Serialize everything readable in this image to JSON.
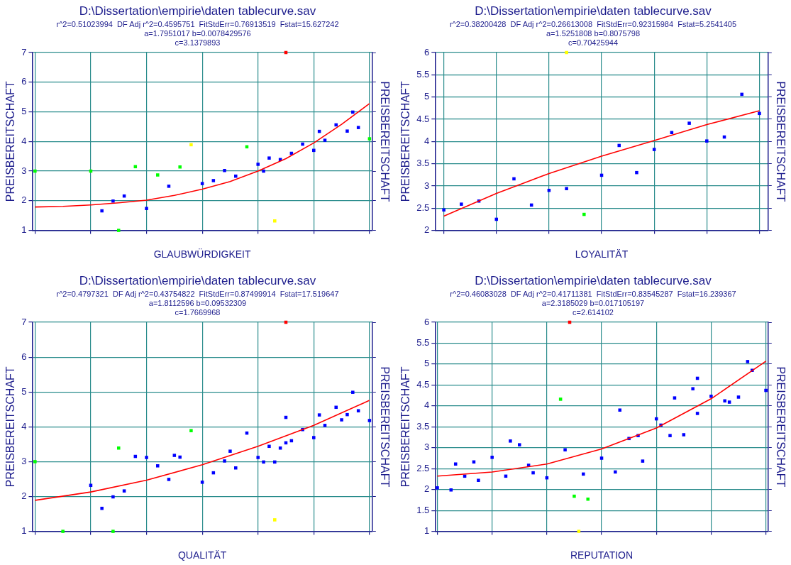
{
  "chart_data": [
    {
      "type": "scatter",
      "title": "D:\\Dissertation\\empirie\\daten tablecurve.sav",
      "subtitle": "r^2=0.51023994  DF Adj r^2=0.4595751  FitStdErr=0.76913519  Fstat=15.627242\na=1.7951017 b=0.0078429576\nc=3.1379893",
      "xlabel": "GLAUBWÜRDIGKEIT",
      "ylabel": "PREISBEREITSCHAFT",
      "y2label": "PREISBEREITSCHAFT",
      "ylim": [
        1,
        7
      ],
      "yticks": [
        1,
        2,
        3,
        4,
        5,
        6,
        7
      ],
      "grid": true,
      "marker": "square",
      "categories": [
        null,
        null,
        null,
        null,
        null,
        null,
        null,
        null,
        null,
        null,
        null,
        null,
        null,
        null,
        null,
        null,
        null,
        null,
        null,
        null,
        null,
        null,
        null,
        null,
        null,
        null,
        null,
        null,
        null,
        null,
        null,
        null,
        null,
        null,
        null,
        null,
        null,
        null,
        null,
        null,
        null,
        null,
        null,
        null,
        null,
        null,
        null,
        null,
        null,
        null,
        null,
        null,
        null,
        null,
        null,
        null,
        null,
        null,
        null,
        null,
        null
      ],
      "series": [
        {
          "color": "#0000ff",
          "values": [
            null,
            null,
            null,
            null,
            null,
            null,
            null,
            null,
            null,
            null,
            null,
            null,
            1.66,
            null,
            1.99,
            null,
            2.16,
            null,
            null,
            null,
            1.74,
            null,
            null,
            null,
            2.49,
            null,
            null,
            null,
            null,
            null,
            2.58,
            null,
            2.68,
            null,
            3.02,
            null,
            2.83,
            null,
            null,
            null,
            3.23,
            3.0,
            3.44,
            null,
            3.39,
            null,
            3.6,
            null,
            3.91,
            null,
            3.7,
            4.34,
            4.04,
            null,
            4.56,
            null,
            4.35,
            4.99,
            4.47,
            null,
            null
          ]
        },
        {
          "color": "#00ff00",
          "values": [
            3.0,
            null,
            null,
            null,
            null,
            null,
            null,
            null,
            null,
            null,
            3.0,
            null,
            null,
            null,
            null,
            1.0,
            null,
            null,
            3.15,
            null,
            null,
            null,
            2.87,
            null,
            null,
            null,
            3.14,
            null,
            null,
            null,
            null,
            null,
            null,
            null,
            null,
            null,
            null,
            null,
            3.82,
            null,
            null,
            null,
            null,
            null,
            null,
            null,
            null,
            null,
            null,
            null,
            null,
            null,
            null,
            null,
            null,
            null,
            null,
            null,
            null,
            null,
            4.09
          ]
        },
        {
          "color": "#ffff00",
          "values": [
            null,
            null,
            null,
            null,
            null,
            null,
            null,
            null,
            null,
            null,
            null,
            null,
            null,
            null,
            null,
            null,
            null,
            null,
            null,
            null,
            null,
            null,
            null,
            null,
            null,
            null,
            null,
            null,
            3.89,
            null,
            null,
            null,
            null,
            null,
            null,
            null,
            null,
            null,
            null,
            null,
            null,
            null,
            null,
            1.32,
            null,
            null,
            null,
            null,
            null,
            null,
            null,
            null,
            null,
            null,
            null,
            null,
            null,
            null,
            null,
            null,
            null
          ]
        },
        {
          "color": "#ff0000",
          "values": [
            null,
            null,
            null,
            null,
            null,
            null,
            null,
            null,
            null,
            null,
            null,
            null,
            null,
            null,
            null,
            null,
            null,
            null,
            null,
            null,
            null,
            null,
            null,
            null,
            null,
            null,
            null,
            null,
            null,
            null,
            null,
            null,
            null,
            null,
            null,
            null,
            null,
            null,
            null,
            null,
            null,
            null,
            null,
            null,
            null,
            7.0,
            null,
            null,
            null,
            null,
            null,
            null,
            null,
            null,
            null,
            null,
            null,
            null,
            null,
            null,
            null
          ]
        },
        {
          "type": "line",
          "color": "#ff0000",
          "marker": "none",
          "values": [
            1.79,
            null,
            null,
            null,
            null,
            1.81,
            null,
            null,
            null,
            null,
            1.86,
            null,
            null,
            null,
            null,
            1.93,
            null,
            null,
            null,
            null,
            2.02,
            null,
            null,
            null,
            null,
            2.18,
            null,
            null,
            null,
            null,
            2.39,
            null,
            null,
            null,
            null,
            2.65,
            null,
            null,
            null,
            null,
            3.0,
            null,
            null,
            null,
            null,
            3.42,
            null,
            null,
            null,
            null,
            3.95,
            null,
            null,
            null,
            null,
            4.58,
            null,
            null,
            null,
            null,
            5.28
          ]
        }
      ]
    },
    {
      "type": "scatter",
      "title": "D:\\Dissertation\\empirie\\daten tablecurve.sav",
      "subtitle": "r^2=0.38200428  DF Adj r^2=0.26613008  FitStdErr=0.92315984  Fstat=5.2541405\na=1.5251808 b=0.8075798\nc=0.70425944",
      "xlabel": "LOYALITÄT",
      "ylabel": "PREISBEREITSCHAFT",
      "y2label": "PREISBEREITSCHAFT",
      "ylim": [
        2,
        6
      ],
      "yticks": [
        2,
        2.5,
        3,
        3.5,
        4,
        4.5,
        5,
        5.5,
        6
      ],
      "grid": true,
      "marker": "square",
      "categories": [
        null,
        null,
        null,
        null,
        null,
        null,
        null,
        null,
        null,
        null,
        null,
        null,
        null,
        null,
        null,
        null,
        null,
        null,
        null
      ],
      "series": [
        {
          "color": "#0000ff",
          "values": [
            2.46,
            2.59,
            2.66,
            2.25,
            3.16,
            2.57,
            2.9,
            2.94,
            null,
            3.24,
            3.91,
            3.3,
            3.82,
            4.2,
            4.41,
            4.01,
            4.1,
            5.06,
            4.63
          ]
        },
        {
          "color": "#00ff00",
          "values": [
            null,
            null,
            null,
            null,
            null,
            null,
            null,
            null,
            2.36,
            null,
            null,
            null,
            null,
            null,
            null,
            null,
            null,
            null,
            null
          ]
        },
        {
          "color": "#ffff00",
          "values": [
            null,
            null,
            null,
            null,
            null,
            null,
            null,
            6.0,
            null,
            null,
            null,
            null,
            null,
            null,
            null,
            null,
            null,
            null,
            null
          ]
        },
        {
          "type": "line",
          "color": "#ff0000",
          "marker": "none",
          "values": [
            2.32,
            null,
            null,
            2.83,
            null,
            null,
            3.28,
            null,
            null,
            3.67,
            null,
            null,
            4.02,
            null,
            null,
            4.38,
            null,
            null,
            4.69
          ]
        }
      ]
    },
    {
      "type": "scatter",
      "title": "D:\\Dissertation\\empirie\\daten tablecurve.sav",
      "subtitle": "r^2=0.4797321  DF Adj r^2=0.43754822  FitStdErr=0.87499914  Fstat=17.519647\na=1.8112596 b=0.09532309\nc=1.7669968",
      "xlabel": "QUALITÄT",
      "ylabel": "PREISBEREITSCHAFT",
      "y2label": "PREISBEREITSCHAFT",
      "ylim": [
        1,
        7
      ],
      "yticks": [
        1,
        2,
        3,
        4,
        5,
        6,
        7
      ],
      "grid": true,
      "marker": "square",
      "categories": [
        null,
        null,
        null,
        null,
        null,
        null,
        null,
        null,
        null,
        null,
        null,
        null,
        null,
        null,
        null,
        null,
        null,
        null,
        null,
        null,
        null,
        null,
        null,
        null,
        null,
        null,
        null,
        null,
        null,
        null,
        null,
        null,
        null,
        null,
        null,
        null,
        null,
        null,
        null,
        null,
        null,
        null,
        null,
        null,
        null,
        null,
        null,
        null,
        null,
        null,
        null,
        null,
        null,
        null,
        null,
        null,
        null,
        null,
        null,
        null,
        null
      ],
      "series": [
        {
          "color": "#0000ff",
          "values": [
            null,
            null,
            null,
            null,
            null,
            null,
            null,
            null,
            null,
            null,
            2.32,
            null,
            1.66,
            null,
            1.99,
            null,
            2.16,
            null,
            3.15,
            null,
            3.12,
            null,
            2.88,
            null,
            2.49,
            3.18,
            3.13,
            null,
            null,
            null,
            2.41,
            null,
            2.68,
            null,
            3.02,
            3.3,
            2.82,
            null,
            3.82,
            null,
            3.12,
            2.99,
            3.44,
            2.99,
            3.39,
            3.54,
            3.6,
            null,
            3.92,
            null,
            3.69,
            4.34,
            4.04,
            null,
            4.56,
            4.2,
            4.35,
            4.99,
            4.46,
            null,
            4.18
          ]
        },
        {
          "color": "#0000ff",
          "values": [
            null,
            null,
            null,
            null,
            null,
            null,
            null,
            null,
            null,
            null,
            null,
            null,
            null,
            null,
            null,
            null,
            null,
            null,
            null,
            null,
            null,
            null,
            null,
            null,
            null,
            null,
            null,
            null,
            null,
            null,
            null,
            null,
            null,
            null,
            null,
            null,
            null,
            null,
            null,
            null,
            null,
            null,
            null,
            null,
            null,
            4.27,
            null,
            null,
            null,
            null,
            null,
            null,
            null,
            null,
            null,
            null,
            null,
            null,
            null,
            null,
            null
          ]
        },
        {
          "color": "#00ff00",
          "values": [
            3.0,
            null,
            null,
            null,
            null,
            1.0,
            null,
            null,
            null,
            null,
            null,
            null,
            null,
            null,
            1.0,
            3.39,
            null,
            null,
            null,
            null,
            null,
            null,
            null,
            null,
            null,
            null,
            null,
            null,
            3.89,
            null,
            null,
            null,
            null,
            null,
            null,
            null,
            null,
            null,
            null,
            null,
            null,
            null,
            null,
            null,
            null,
            null,
            null,
            null,
            null,
            null,
            null,
            null,
            null,
            null,
            null,
            null,
            null,
            null,
            null,
            null,
            null
          ]
        },
        {
          "color": "#ffff00",
          "values": [
            null,
            null,
            null,
            null,
            null,
            null,
            null,
            null,
            null,
            null,
            null,
            null,
            null,
            null,
            null,
            null,
            null,
            null,
            null,
            null,
            null,
            null,
            null,
            null,
            null,
            null,
            null,
            null,
            null,
            null,
            null,
            null,
            null,
            null,
            null,
            null,
            null,
            null,
            null,
            null,
            null,
            null,
            null,
            1.33,
            null,
            null,
            null,
            null,
            null,
            null,
            null,
            null,
            null,
            null,
            null,
            null,
            null,
            null,
            null,
            null,
            null
          ]
        },
        {
          "color": "#ff0000",
          "values": [
            null,
            null,
            null,
            null,
            null,
            null,
            null,
            null,
            null,
            null,
            null,
            null,
            null,
            null,
            null,
            null,
            null,
            null,
            null,
            null,
            null,
            null,
            null,
            null,
            null,
            null,
            null,
            null,
            null,
            null,
            null,
            null,
            null,
            null,
            null,
            null,
            null,
            null,
            null,
            null,
            null,
            null,
            null,
            null,
            null,
            7.0,
            null,
            null,
            null,
            null,
            null,
            null,
            null,
            null,
            null,
            null,
            null,
            null,
            null,
            null,
            null
          ]
        },
        {
          "type": "line",
          "color": "#ff0000",
          "marker": "none",
          "values": [
            1.89,
            null,
            null,
            null,
            null,
            null,
            null,
            null,
            null,
            null,
            2.13,
            null,
            null,
            null,
            null,
            null,
            null,
            null,
            null,
            null,
            2.47,
            null,
            null,
            null,
            null,
            null,
            null,
            null,
            null,
            null,
            2.91,
            null,
            null,
            null,
            null,
            null,
            null,
            null,
            null,
            null,
            3.44,
            null,
            null,
            null,
            null,
            null,
            null,
            null,
            null,
            null,
            4.04,
            null,
            null,
            null,
            null,
            null,
            null,
            null,
            null,
            null,
            4.76
          ]
        }
      ]
    },
    {
      "type": "scatter",
      "title": "D:\\Dissertation\\empirie\\daten tablecurve.sav",
      "subtitle": "r^2=0.46083028  DF Adj r^2=0.41711381  FitStdErr=0.83545287  Fstat=16.239367\na=2.3185029 b=0.017105197\nc=2.614102",
      "xlabel": "REPUTATION",
      "ylabel": "PREISBEREITSCHAFT",
      "y2label": "PREISBEREITSCHAFT",
      "ylim": [
        1,
        6
      ],
      "yticks": [
        1,
        1.5,
        2,
        2.5,
        3,
        3.5,
        4,
        4.5,
        5,
        5.5,
        6
      ],
      "grid": true,
      "marker": "square",
      "categories": [
        null,
        null,
        null,
        null,
        null,
        null,
        null,
        null,
        null,
        null,
        null,
        null,
        null,
        null,
        null,
        null,
        null,
        null,
        null,
        null,
        null,
        null,
        null,
        null,
        null,
        null,
        null,
        null,
        null,
        null,
        null,
        null,
        null,
        null,
        null,
        null,
        null,
        null,
        null,
        null,
        null,
        null,
        null,
        null,
        null,
        null,
        null,
        null,
        null,
        null,
        null,
        null,
        null,
        null,
        null,
        null,
        null,
        null,
        null,
        null,
        null,
        null,
        null,
        null,
        null,
        null,
        null,
        null,
        null,
        null,
        null,
        null,
        null
      ],
      "series": [
        {
          "color": "#0000ff",
          "values": [
            2.04,
            null,
            null,
            1.99,
            2.61,
            null,
            2.32,
            null,
            2.66,
            2.22,
            null,
            null,
            2.77,
            null,
            null,
            2.32,
            3.16,
            null,
            3.07,
            null,
            2.58,
            2.4,
            null,
            null,
            2.28,
            null,
            null,
            null,
            2.95,
            null,
            null,
            null,
            2.37,
            null,
            null,
            null,
            2.75,
            null,
            null,
            2.42,
            3.9,
            null,
            3.22,
            null,
            3.29,
            2.68,
            null,
            null,
            3.69,
            3.54,
            null,
            3.29,
            4.19,
            null,
            3.31,
            null,
            4.41,
            3.82,
            null,
            null,
            4.23,
            null,
            null,
            4.12,
            4.09,
            null,
            4.21,
            null,
            5.06,
            4.85,
            null,
            null,
            4.37
          ]
        },
        {
          "color": "#0000ff",
          "values": [
            null,
            null,
            null,
            null,
            null,
            null,
            null,
            null,
            null,
            null,
            null,
            null,
            null,
            null,
            null,
            null,
            null,
            null,
            null,
            null,
            null,
            null,
            null,
            null,
            null,
            null,
            null,
            null,
            null,
            null,
            null,
            null,
            null,
            null,
            null,
            null,
            null,
            null,
            null,
            null,
            null,
            null,
            null,
            null,
            null,
            null,
            null,
            null,
            null,
            null,
            null,
            null,
            null,
            null,
            null,
            null,
            null,
            4.66,
            null,
            null,
            null,
            null,
            null,
            null,
            null,
            null,
            null,
            null,
            null,
            null,
            null,
            null,
            null
          ]
        },
        {
          "color": "#00ff00",
          "values": [
            null,
            null,
            null,
            null,
            null,
            null,
            null,
            null,
            null,
            null,
            null,
            null,
            null,
            null,
            null,
            null,
            null,
            null,
            null,
            null,
            null,
            null,
            null,
            null,
            null,
            null,
            null,
            4.16,
            null,
            null,
            1.84,
            null,
            null,
            1.77,
            null,
            null,
            null,
            null,
            null,
            null,
            null,
            null,
            null,
            null,
            null,
            null,
            null,
            null,
            null,
            null,
            null,
            null,
            null,
            null,
            null,
            null,
            null,
            null,
            null,
            null,
            null,
            null,
            null,
            null,
            null,
            null,
            null,
            null,
            null,
            null,
            null,
            null,
            null
          ]
        },
        {
          "color": "#ffff00",
          "values": [
            null,
            null,
            null,
            null,
            null,
            null,
            null,
            null,
            null,
            null,
            null,
            null,
            null,
            null,
            null,
            null,
            null,
            null,
            null,
            null,
            null,
            null,
            null,
            null,
            null,
            null,
            null,
            null,
            null,
            null,
            null,
            1.0,
            null,
            null,
            null,
            null,
            null,
            null,
            null,
            null,
            null,
            null,
            null,
            null,
            null,
            null,
            null,
            null,
            null,
            null,
            null,
            null,
            null,
            null,
            null,
            null,
            null,
            null,
            null,
            null,
            null,
            null,
            null,
            null,
            null,
            null,
            null,
            null,
            null,
            null,
            null,
            null,
            null
          ]
        },
        {
          "color": "#ff0000",
          "values": [
            null,
            null,
            null,
            null,
            null,
            null,
            null,
            null,
            null,
            null,
            null,
            null,
            null,
            null,
            null,
            null,
            null,
            null,
            null,
            null,
            null,
            null,
            null,
            null,
            null,
            null,
            null,
            null,
            null,
            6.0,
            null,
            null,
            null,
            null,
            null,
            null,
            null,
            null,
            null,
            null,
            null,
            null,
            null,
            null,
            null,
            null,
            null,
            null,
            null,
            null,
            null,
            null,
            null,
            null,
            null,
            null,
            null,
            null,
            null,
            null,
            null,
            null,
            null,
            null,
            null,
            null,
            null,
            null,
            null,
            null,
            null,
            null,
            null
          ]
        },
        {
          "type": "line",
          "color": "#ff0000",
          "marker": "none",
          "values": [
            2.32,
            null,
            null,
            null,
            null,
            null,
            null,
            null,
            null,
            null,
            null,
            null,
            2.42,
            null,
            null,
            null,
            null,
            null,
            null,
            null,
            null,
            null,
            null,
            null,
            2.61,
            null,
            null,
            null,
            null,
            null,
            null,
            null,
            null,
            null,
            null,
            null,
            2.97,
            null,
            null,
            null,
            null,
            null,
            null,
            null,
            null,
            null,
            null,
            null,
            3.47,
            null,
            null,
            null,
            null,
            null,
            null,
            null,
            null,
            null,
            null,
            null,
            4.17,
            null,
            null,
            null,
            null,
            null,
            null,
            null,
            null,
            null,
            null,
            null,
            5.07
          ]
        }
      ]
    }
  ]
}
